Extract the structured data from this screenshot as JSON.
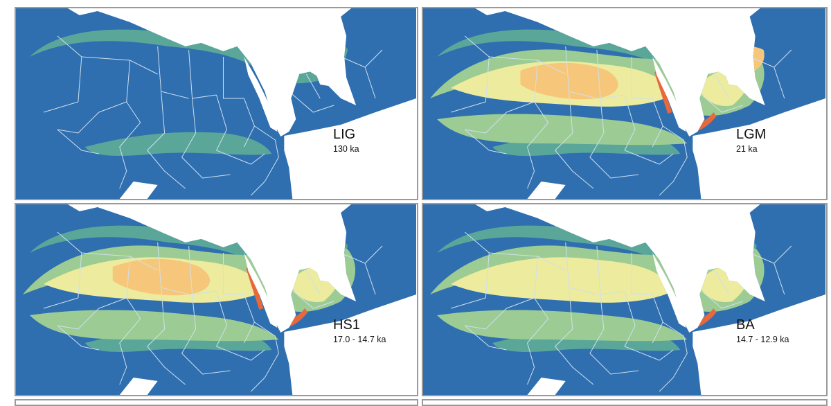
{
  "colors": {
    "humid": "#2f6fb0",
    "semi_humid": "#5aa79a",
    "semi_arid": "#9ccc94",
    "arid": "#eceb9e",
    "hyper_arid": "#f6c77a",
    "extreme": "#e8683c",
    "sea": "#ffffff",
    "border_line": "#cfe0ee",
    "frame": "#9a9a9a"
  },
  "panels": [
    {
      "id": "lig",
      "label": "LIG",
      "age": "130 ka",
      "aridity_level": 0.15
    },
    {
      "id": "lgm",
      "label": "LGM",
      "age": "21 ka",
      "aridity_level": 0.85
    },
    {
      "id": "hs1",
      "label": "HS1",
      "age": "17.0 - 14.7  ka",
      "aridity_level": 0.7
    },
    {
      "id": "ba",
      "label": "BA",
      "age": "14.7 - 12.9  ka",
      "aridity_level": 0.5
    }
  ]
}
